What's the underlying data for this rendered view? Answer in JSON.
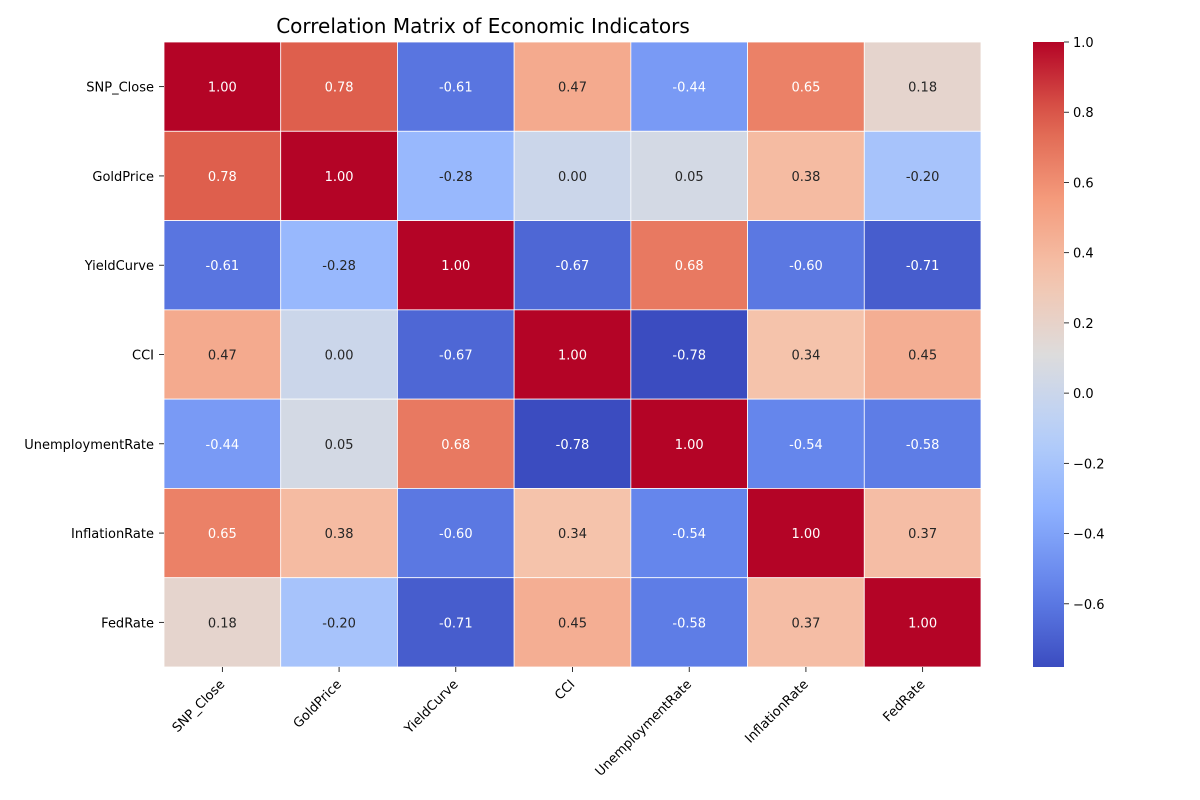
{
  "chart_data": {
    "type": "heatmap",
    "title": "Correlation Matrix of Economic Indicators",
    "x_labels": [
      "SNP_Close",
      "GoldPrice",
      "YieldCurve",
      "CCI",
      "UnemploymentRate",
      "InflationRate",
      "FedRate"
    ],
    "y_labels": [
      "SNP_Close",
      "GoldPrice",
      "YieldCurve",
      "CCI",
      "UnemploymentRate",
      "InflationRate",
      "FedRate"
    ],
    "values": [
      [
        1.0,
        0.78,
        -0.61,
        0.47,
        -0.44,
        0.65,
        0.18
      ],
      [
        0.78,
        1.0,
        -0.28,
        0.0,
        0.05,
        0.38,
        -0.2
      ],
      [
        -0.61,
        -0.28,
        1.0,
        -0.67,
        0.68,
        -0.6,
        -0.71
      ],
      [
        0.47,
        0.0,
        -0.67,
        1.0,
        -0.78,
        0.34,
        0.45
      ],
      [
        -0.44,
        0.05,
        0.68,
        -0.78,
        1.0,
        -0.54,
        -0.58
      ],
      [
        0.65,
        0.38,
        -0.6,
        0.34,
        -0.54,
        1.0,
        0.37
      ],
      [
        0.18,
        -0.2,
        -0.71,
        0.45,
        -0.58,
        0.37,
        1.0
      ]
    ],
    "colormap": "coolwarm",
    "color_range": [
      -0.78,
      1.0
    ],
    "colorbar_ticks": [
      "1.0",
      "0.8",
      "0.6",
      "0.4",
      "0.2",
      "0.0",
      "−0.2",
      "−0.4",
      "−0.6"
    ],
    "colorbar_tick_values": [
      1.0,
      0.8,
      0.6,
      0.4,
      0.2,
      0.0,
      -0.2,
      -0.4,
      -0.6
    ]
  }
}
